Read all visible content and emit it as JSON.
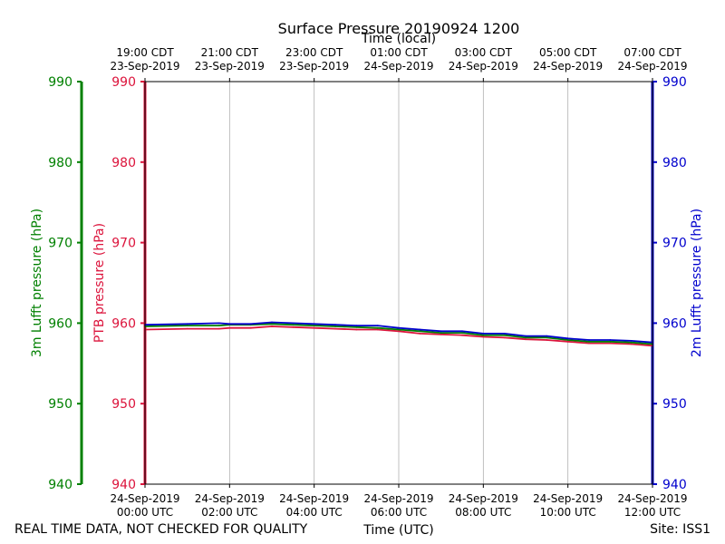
{
  "chart_data": {
    "type": "line",
    "title": "Surface Pressure 20190924 1200",
    "top_axis_label": "Time (local)",
    "xlabel": "Time (UTC)",
    "footer_left": "REAL TIME DATA, NOT CHECKED FOR QUALITY",
    "footer_right": "Site: ISS1",
    "y_axes": [
      {
        "id": "lufft3m",
        "label": "3m Lufft pressure (hPa)",
        "side": "far-left",
        "color": "#008000",
        "ylim": [
          940,
          990
        ],
        "ticks": [
          "940",
          "950",
          "960",
          "970",
          "980",
          "990"
        ]
      },
      {
        "id": "ptb",
        "label": "PTB pressure (hPa)",
        "side": "left",
        "color": "#dc143c",
        "ylim": [
          940,
          990
        ],
        "ticks": [
          "940",
          "950",
          "960",
          "970",
          "980",
          "990"
        ]
      },
      {
        "id": "lufft2m",
        "label": "2m Lufft pressure (hPa)",
        "side": "right",
        "color": "#0000cd",
        "ylim": [
          940,
          990
        ],
        "ticks": [
          "940",
          "950",
          "960",
          "970",
          "980",
          "990"
        ]
      }
    ],
    "x_range_hours_utc": [
      0,
      12
    ],
    "x_ticks_utc": [
      {
        "hour": 0,
        "date": "24-Sep-2019",
        "time": "00:00 UTC"
      },
      {
        "hour": 2,
        "date": "24-Sep-2019",
        "time": "02:00 UTC"
      },
      {
        "hour": 4,
        "date": "24-Sep-2019",
        "time": "04:00 UTC"
      },
      {
        "hour": 6,
        "date": "24-Sep-2019",
        "time": "06:00 UTC"
      },
      {
        "hour": 8,
        "date": "24-Sep-2019",
        "time": "08:00 UTC"
      },
      {
        "hour": 10,
        "date": "24-Sep-2019",
        "time": "10:00 UTC"
      },
      {
        "hour": 12,
        "date": "24-Sep-2019",
        "time": "12:00 UTC"
      }
    ],
    "x_ticks_local": [
      {
        "hour": 0,
        "time": "19:00 CDT",
        "date": "23-Sep-2019"
      },
      {
        "hour": 2,
        "time": "21:00 CDT",
        "date": "23-Sep-2019"
      },
      {
        "hour": 4,
        "time": "23:00 CDT",
        "date": "23-Sep-2019"
      },
      {
        "hour": 6,
        "time": "01:00 CDT",
        "date": "24-Sep-2019"
      },
      {
        "hour": 8,
        "time": "03:00 CDT",
        "date": "24-Sep-2019"
      },
      {
        "hour": 10,
        "time": "05:00 CDT",
        "date": "24-Sep-2019"
      },
      {
        "hour": 12,
        "time": "07:00 CDT",
        "date": "24-Sep-2019"
      }
    ],
    "grid": "vertical",
    "series": [
      {
        "axis": "ptb",
        "color": "#dc143c",
        "x": [
          0,
          1,
          1.75,
          2,
          2.5,
          3,
          3.5,
          4,
          4.5,
          5,
          5.5,
          6,
          6.5,
          7,
          7.5,
          8,
          8.5,
          9,
          9.5,
          10,
          10.5,
          11,
          11.5,
          12
        ],
        "y": [
          959.2,
          959.3,
          959.3,
          959.4,
          959.4,
          959.6,
          959.5,
          959.4,
          959.3,
          959.2,
          959.2,
          959.0,
          958.7,
          958.6,
          958.5,
          958.3,
          958.2,
          958.0,
          957.9,
          957.7,
          957.5,
          957.5,
          957.4,
          957.2
        ]
      },
      {
        "axis": "lufft3m",
        "color": "#008000",
        "x": [
          0,
          1,
          1.75,
          2,
          2.5,
          3,
          3.5,
          4,
          4.5,
          5,
          5.5,
          6,
          6.5,
          7,
          7.5,
          8,
          8.5,
          9,
          9.5,
          10,
          10.5,
          11,
          11.5,
          12
        ],
        "y": [
          959.6,
          959.7,
          959.7,
          959.8,
          959.8,
          959.9,
          959.8,
          959.7,
          959.6,
          959.5,
          959.4,
          959.2,
          959.0,
          958.8,
          958.8,
          958.5,
          958.5,
          958.2,
          958.2,
          957.9,
          957.7,
          957.7,
          957.6,
          957.4
        ]
      },
      {
        "axis": "lufft2m",
        "color": "#0000cd",
        "x": [
          0,
          1,
          1.75,
          2,
          2.5,
          3,
          3.5,
          4,
          4.5,
          5,
          5.5,
          6,
          6.5,
          7,
          7.5,
          8,
          8.5,
          9,
          9.5,
          10,
          10.5,
          11,
          11.5,
          12
        ],
        "y": [
          959.8,
          959.9,
          960.0,
          959.9,
          959.9,
          960.1,
          960.0,
          959.9,
          959.8,
          959.7,
          959.7,
          959.4,
          959.2,
          959.0,
          959.0,
          958.7,
          958.7,
          958.4,
          958.4,
          958.1,
          957.9,
          957.9,
          957.8,
          957.6
        ]
      }
    ]
  }
}
